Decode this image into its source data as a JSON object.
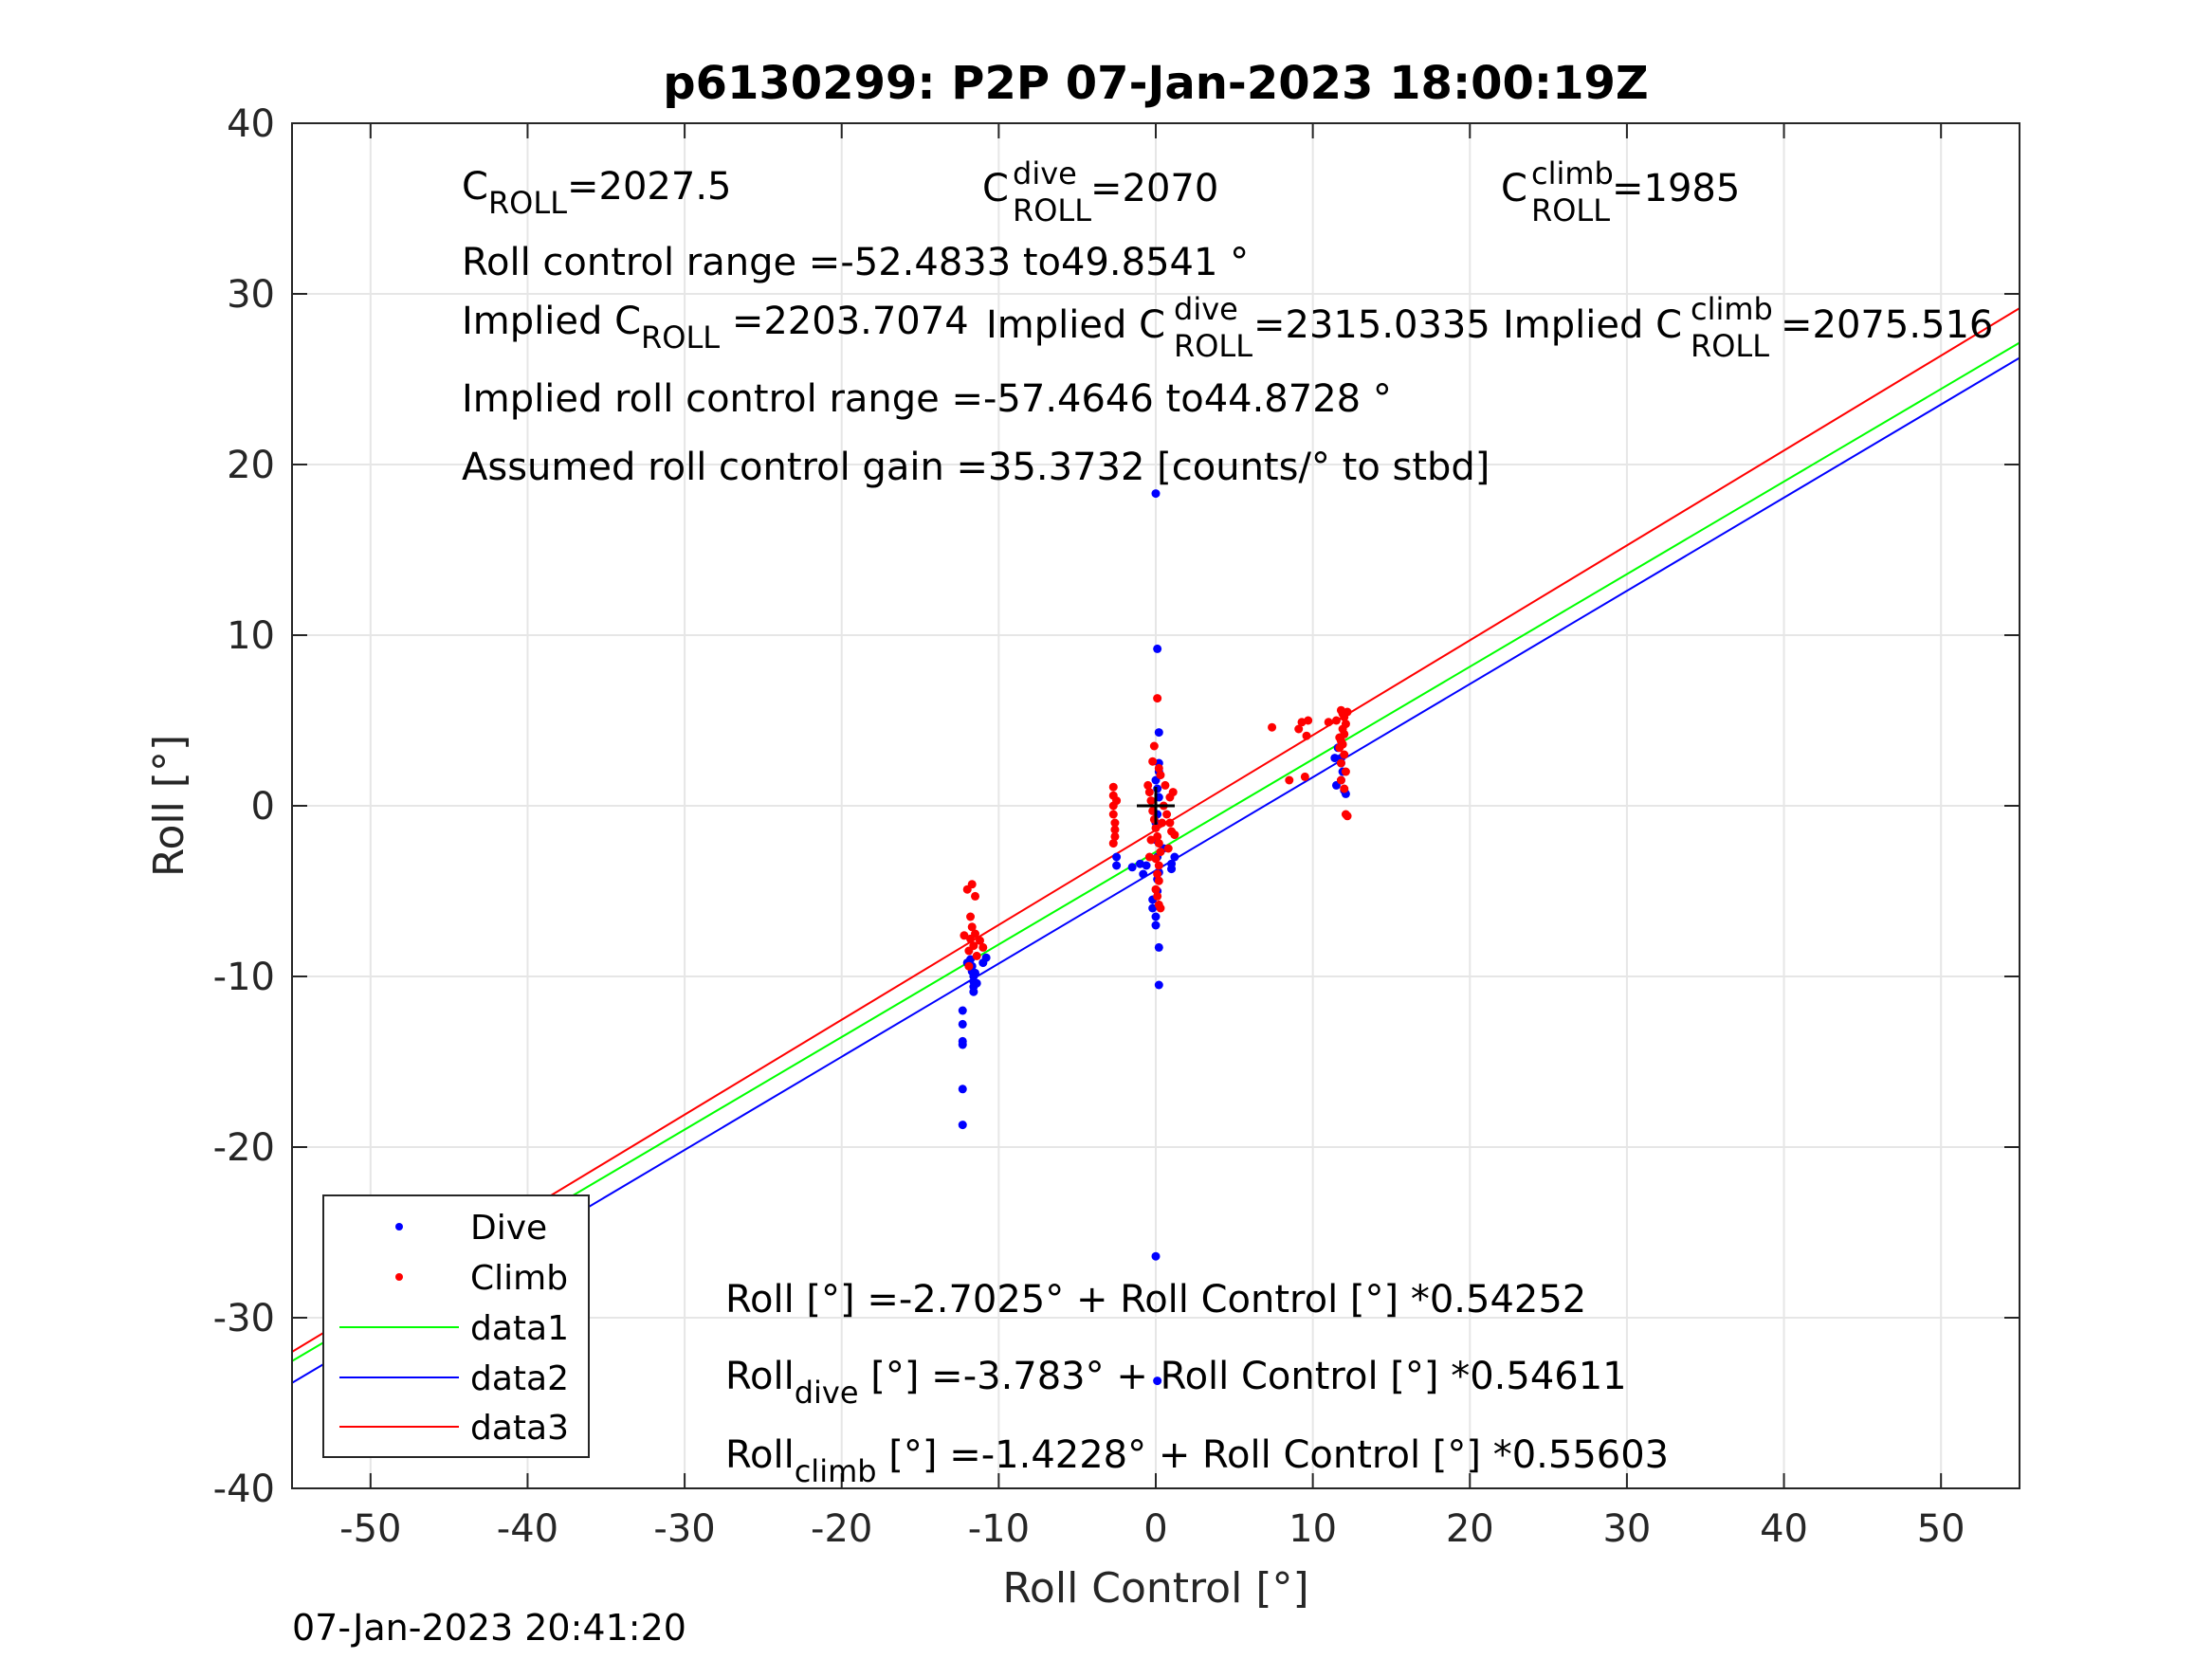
{
  "footer": {
    "timestamp": "07-Jan-2023 20:41:20"
  },
  "annotations": {
    "c_roll": {
      "base": "C",
      "sub": "ROLL",
      "value": "=2027.5"
    },
    "c_roll_dive": {
      "base": "C",
      "sup": "dive",
      "sub": "ROLL",
      "value": " =2070"
    },
    "c_roll_climb": {
      "base": "C",
      "sup": "climb",
      "sub": "ROLL",
      "value": " =1985"
    },
    "roll_range": "Roll control range =-52.4833 to49.8541 °",
    "implied_c_roll": {
      "prefix": "Implied C",
      "sub": "ROLL",
      "value": " =2203.7074"
    },
    "implied_c_roll_dive": {
      "prefix": "Implied C",
      "sup": "dive",
      "sub": "ROLL",
      "value": " =2315.0335"
    },
    "implied_c_roll_climb": {
      "prefix": "Implied C",
      "sup": "climb",
      "sub": "ROLL",
      "value": " =2075.516"
    },
    "implied_range": "Implied roll control range =-57.4646 to44.8728 °",
    "gain": "Assumed roll control gain =35.3732 [counts/° to stbd]",
    "fit_all": "Roll [°] =-2.7025° + Roll Control [°] *0.54252",
    "fit_dive": {
      "base": "Roll",
      "sub": "dive",
      "rest": " [°] =-3.783° + Roll Control [°] *0.54611"
    },
    "fit_climb": {
      "base": "Roll",
      "sub": "climb",
      "rest": " [°] =-1.4228° + Roll Control [°] *0.55603"
    }
  },
  "colors": {
    "dive": "#0000ff",
    "climb": "#ff0000",
    "data1": "#00ff00",
    "data2": "#0000ff",
    "data3": "#ff0000",
    "grid": "#e6e6e6",
    "axis": "#262626",
    "center_marker": "#000000"
  },
  "chart_data": {
    "type": "scatter",
    "title": "p6130299: P2P 07-Jan-2023 18:00:19Z",
    "xlabel": "Roll Control [°]",
    "ylabel": "Roll [°]",
    "xlim": [
      -55,
      55
    ],
    "ylim": [
      -40,
      40
    ],
    "xticks": [
      -50,
      -40,
      -30,
      -20,
      -10,
      0,
      10,
      20,
      30,
      40,
      50
    ],
    "yticks": [
      -40,
      -30,
      -20,
      -10,
      0,
      10,
      20,
      30,
      40
    ],
    "grid": true,
    "legend": {
      "placement": "bottom-left",
      "entries": [
        "Dive",
        "Climb",
        "data1",
        "data2",
        "data3"
      ]
    },
    "center_marker": {
      "x": 0,
      "y": 0
    },
    "series": [
      {
        "name": "Dive",
        "kind": "points",
        "points": [
          [
            -12.3,
            -18.7
          ],
          [
            -12.3,
            -16.6
          ],
          [
            -12.3,
            -14.0
          ],
          [
            -12.3,
            -13.8
          ],
          [
            -12.3,
            -12.8
          ],
          [
            -12.3,
            -12.0
          ],
          [
            -11.6,
            -10.9
          ],
          [
            -11.6,
            -10.6
          ],
          [
            -11.6,
            -10.3
          ],
          [
            -11.6,
            -10.0
          ],
          [
            -11.7,
            -9.7
          ],
          [
            -11.7,
            -9.4
          ],
          [
            -11.8,
            -9.0
          ],
          [
            -11.5,
            -9.8
          ],
          [
            -11.4,
            -10.4
          ],
          [
            -12.0,
            -9.2
          ],
          [
            -11.0,
            -9.2
          ],
          [
            -10.8,
            -8.9
          ],
          [
            -2.5,
            -3.5
          ],
          [
            -2.5,
            -3.0
          ],
          [
            -1.5,
            -3.6
          ],
          [
            -1.0,
            -3.4
          ],
          [
            -0.8,
            -4.0
          ],
          [
            -0.6,
            -3.5
          ],
          [
            -0.2,
            -5.5
          ],
          [
            -0.2,
            -6.0
          ],
          [
            0.0,
            -6.5
          ],
          [
            0.0,
            -7.0
          ],
          [
            0.1,
            -5.0
          ],
          [
            0.1,
            -4.3
          ],
          [
            0.2,
            -3.9
          ],
          [
            0.1,
            -3.0
          ],
          [
            0.0,
            -2.0
          ],
          [
            0.0,
            -1.0
          ],
          [
            0.1,
            -0.5
          ],
          [
            0.2,
            0.5
          ],
          [
            0.1,
            1.0
          ],
          [
            0.0,
            1.5
          ],
          [
            0.2,
            2.0
          ],
          [
            0.2,
            2.5
          ],
          [
            0.2,
            4.3
          ],
          [
            1.0,
            -3.4
          ],
          [
            1.0,
            -3.7
          ],
          [
            1.2,
            -3.0
          ],
          [
            0.5,
            -2.5
          ],
          [
            0.2,
            -8.3
          ],
          [
            0.2,
            -10.5
          ],
          [
            0.1,
            9.2
          ],
          [
            0.0,
            18.3
          ],
          [
            0.0,
            -26.4
          ],
          [
            0.1,
            -33.7
          ],
          [
            11.4,
            2.8
          ],
          [
            11.6,
            3.4
          ],
          [
            11.8,
            2.5
          ],
          [
            11.9,
            2.0
          ],
          [
            11.8,
            1.5
          ],
          [
            12.0,
            0.9
          ],
          [
            11.5,
            1.2
          ],
          [
            12.1,
            0.7
          ],
          [
            11.8,
            2.8
          ]
        ]
      },
      {
        "name": "Climb",
        "kind": "points",
        "points": [
          [
            -12.0,
            -4.9
          ],
          [
            -11.7,
            -4.6
          ],
          [
            -11.5,
            -5.3
          ],
          [
            -11.8,
            -6.5
          ],
          [
            -11.7,
            -7.1
          ],
          [
            -11.5,
            -7.5
          ],
          [
            -11.8,
            -7.8
          ],
          [
            -11.6,
            -8.2
          ],
          [
            -11.9,
            -8.5
          ],
          [
            -11.4,
            -8.8
          ],
          [
            -11.2,
            -7.9
          ],
          [
            -11.0,
            -8.3
          ],
          [
            -12.2,
            -7.6
          ],
          [
            -11.9,
            -9.4
          ],
          [
            -2.7,
            1.1
          ],
          [
            -2.7,
            0.6
          ],
          [
            -2.7,
            0.0
          ],
          [
            -2.7,
            -0.5
          ],
          [
            -2.6,
            -1.0
          ],
          [
            -2.6,
            -1.4
          ],
          [
            -2.6,
            -1.8
          ],
          [
            -2.7,
            -2.2
          ],
          [
            -2.5,
            0.3
          ],
          [
            -0.5,
            1.2
          ],
          [
            -0.4,
            0.8
          ],
          [
            -0.3,
            0.3
          ],
          [
            -0.2,
            -0.3
          ],
          [
            -0.1,
            -0.8
          ],
          [
            0.0,
            -1.3
          ],
          [
            0.1,
            -1.8
          ],
          [
            0.2,
            -2.2
          ],
          [
            0.3,
            -2.7
          ],
          [
            0.0,
            -3.1
          ],
          [
            0.2,
            -3.5
          ],
          [
            0.1,
            -4.0
          ],
          [
            0.2,
            -4.4
          ],
          [
            0.0,
            -4.9
          ],
          [
            0.1,
            -5.3
          ],
          [
            0.2,
            -5.8
          ],
          [
            -0.3,
            -2.0
          ],
          [
            -0.4,
            -3.0
          ],
          [
            0.4,
            -1.0
          ],
          [
            0.5,
            0.0
          ],
          [
            0.6,
            1.2
          ],
          [
            0.3,
            1.8
          ],
          [
            0.2,
            2.2
          ],
          [
            -0.2,
            2.6
          ],
          [
            -0.1,
            3.5
          ],
          [
            0.1,
            6.3
          ],
          [
            0.3,
            -6.0
          ],
          [
            0.7,
            -0.5
          ],
          [
            0.9,
            -1.0
          ],
          [
            1.0,
            -1.5
          ],
          [
            0.9,
            0.5
          ],
          [
            1.1,
            0.8
          ],
          [
            0.8,
            -2.5
          ],
          [
            1.2,
            -1.7
          ],
          [
            7.4,
            4.6
          ],
          [
            8.5,
            1.5
          ],
          [
            9.1,
            4.5
          ],
          [
            9.3,
            4.9
          ],
          [
            9.5,
            1.7
          ],
          [
            9.6,
            4.1
          ],
          [
            9.7,
            5.0
          ],
          [
            11.0,
            4.9
          ],
          [
            11.5,
            5.0
          ],
          [
            11.8,
            5.6
          ],
          [
            11.9,
            5.4
          ],
          [
            12.0,
            5.2
          ],
          [
            12.1,
            4.8
          ],
          [
            12.2,
            5.5
          ],
          [
            11.9,
            4.5
          ],
          [
            12.0,
            4.2
          ],
          [
            11.8,
            3.8
          ],
          [
            11.7,
            3.4
          ],
          [
            12.0,
            3.0
          ],
          [
            11.8,
            2.5
          ],
          [
            12.1,
            2.0
          ],
          [
            11.8,
            1.5
          ],
          [
            12.0,
            1.0
          ],
          [
            12.1,
            -0.5
          ],
          [
            12.2,
            -0.6
          ],
          [
            11.7,
            4.0
          ],
          [
            11.9,
            3.6
          ]
        ]
      },
      {
        "name": "data1",
        "kind": "line",
        "x": [
          -55,
          55
        ],
        "y": [
          -32.54,
          27.14
        ]
      },
      {
        "name": "data2",
        "kind": "line",
        "x": [
          -55,
          55
        ],
        "y": [
          -33.82,
          26.25
        ]
      },
      {
        "name": "data3",
        "kind": "line",
        "x": [
          -55,
          55
        ],
        "y": [
          -32.0,
          29.16
        ]
      }
    ]
  }
}
